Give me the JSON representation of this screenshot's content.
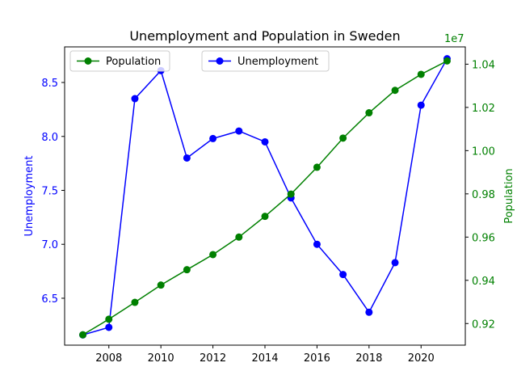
{
  "chart_data": {
    "type": "line",
    "title": "Unemployment and Population in Sweden",
    "x": [
      2007,
      2008,
      2009,
      2010,
      2011,
      2012,
      2013,
      2014,
      2015,
      2016,
      2017,
      2018,
      2019,
      2020,
      2021
    ],
    "x_ticks": [
      "2008",
      "2010",
      "2012",
      "2014",
      "2016",
      "2018",
      "2020"
    ],
    "xlim": [
      2006.3,
      2021.7
    ],
    "series": [
      {
        "name": "Unemployment",
        "axis": "left",
        "color": "#0000ff",
        "values": [
          6.16,
          6.23,
          8.35,
          8.61,
          7.8,
          7.98,
          8.05,
          7.95,
          7.43,
          7.0,
          6.72,
          6.37,
          6.83,
          8.29,
          8.72
        ]
      },
      {
        "name": "Population",
        "axis": "right",
        "color": "#008000",
        "values": [
          9148000,
          9220000,
          9298000,
          9378000,
          9449000,
          9519000,
          9600000,
          9696000,
          9799000,
          9923000,
          10058000,
          10175000,
          10279000,
          10353000,
          10415000
        ]
      }
    ],
    "left_axis": {
      "label": "Unemployment",
      "color": "#0000ff",
      "ticks": [
        "6.5",
        "7.0",
        "7.5",
        "8.0",
        "8.5"
      ],
      "ylim": [
        6.065,
        8.83
      ]
    },
    "right_axis": {
      "label": "Population",
      "color": "#008000",
      "ticks": [
        "0.92",
        "0.94",
        "0.96",
        "0.98",
        "1.00",
        "1.02",
        "1.04"
      ],
      "scale_label": "1e7",
      "ylim": [
        9100000.0,
        10480000.0
      ]
    },
    "legends": [
      {
        "placement": "upper-left",
        "entries": [
          "Population"
        ]
      },
      {
        "placement": "upper-center",
        "entries": [
          "Unemployment"
        ]
      }
    ],
    "grid": false
  }
}
